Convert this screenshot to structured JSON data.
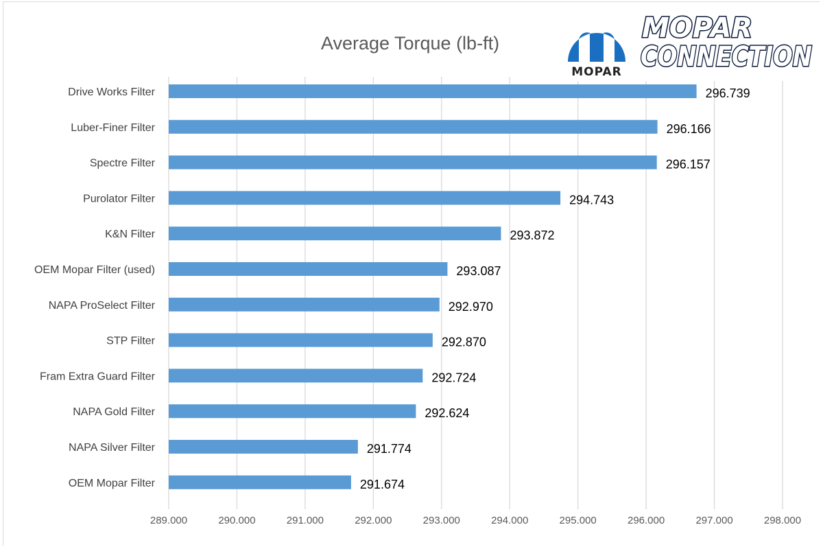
{
  "chart_data": {
    "type": "bar",
    "orientation": "horizontal",
    "title": "Average Torque (lb-ft)",
    "xlabel": "",
    "ylabel": "",
    "categories": [
      "Drive Works Filter",
      "Luber-Finer Filter",
      "Spectre Filter",
      "Purolator Filter",
      "K&N Filter",
      "OEM Mopar Filter (used)",
      "NAPA ProSelect Filter",
      "STP Filter",
      "Fram Extra Guard Filter",
      "NAPA Gold Filter",
      "NAPA Silver Filter",
      "OEM Mopar Filter"
    ],
    "values": [
      296.739,
      296.166,
      296.157,
      294.743,
      293.872,
      293.087,
      292.97,
      292.87,
      292.724,
      292.624,
      291.774,
      291.674
    ],
    "data_labels": [
      "296.739",
      "296.166",
      "296.157",
      "294.743",
      "293.872",
      "293.087",
      "292.970",
      "292.870",
      "292.724",
      "292.624",
      "291.774",
      "291.674"
    ],
    "xlim": [
      289,
      298
    ],
    "xticks": [
      "289.000",
      "290.000",
      "291.000",
      "292.000",
      "293.000",
      "294.000",
      "295.000",
      "296.000",
      "297.000",
      "298.000"
    ],
    "grid": "vertical",
    "legend": "none",
    "bar_color": "#5b9bd5"
  },
  "logo": {
    "brand": "MOPAR",
    "line1": "MOPAR",
    "line2": "CONNECTION",
    "colors": {
      "mopar_blue": "#1a6fc0"
    }
  }
}
